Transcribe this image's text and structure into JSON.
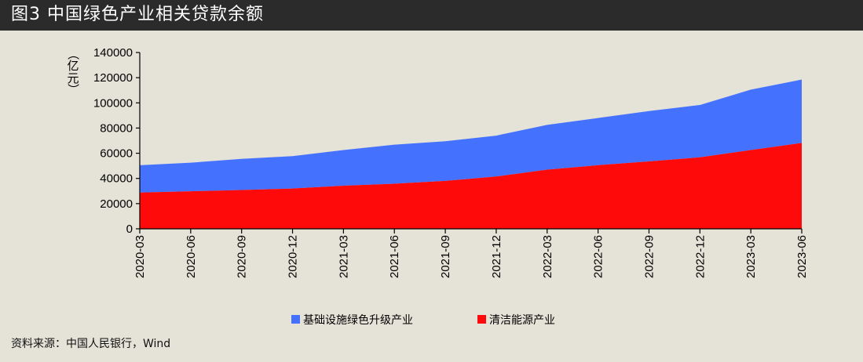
{
  "title": "图3  中国绿色产业相关贷款余额",
  "source": "资料来源：中国人民银行，Wind",
  "colors": {
    "background": "#e5e2d7",
    "title_bar": "#2b2b2b",
    "infrastructure": "#4472ff",
    "clean_energy": "#ff0a0a"
  },
  "chart_data": {
    "type": "area",
    "stacked": true,
    "ylabel": "亿元",
    "ylabel_chars": [
      "（",
      "亿",
      "元",
      "）"
    ],
    "ylim": [
      0,
      140000
    ],
    "yticks": [
      0,
      20000,
      40000,
      60000,
      80000,
      100000,
      120000,
      140000
    ],
    "categories": [
      "2020-03",
      "2020-06",
      "2020-09",
      "2020-12",
      "2021-03",
      "2021-06",
      "2021-09",
      "2021-12",
      "2022-03",
      "2022-06",
      "2022-09",
      "2022-12",
      "2023-03",
      "2023-06"
    ],
    "series": [
      {
        "name": "清洁能源产业",
        "color": "#ff0a0a",
        "values": [
          28800,
          29800,
          30800,
          32000,
          34200,
          35800,
          38000,
          41500,
          47000,
          50500,
          53500,
          56800,
          62500,
          68200
        ]
      },
      {
        "name": "基础设施绿色升级产业",
        "color": "#4472ff",
        "values": [
          21700,
          22700,
          24700,
          25700,
          28300,
          31000,
          31500,
          32500,
          35500,
          37500,
          40000,
          41500,
          48000,
          50300
        ]
      }
    ],
    "legend": [
      {
        "name": "基础设施绿色升级产业",
        "color": "#4472ff"
      },
      {
        "name": "清洁能源产业",
        "color": "#ff0a0a"
      }
    ],
    "legend_position": "bottom-center"
  }
}
